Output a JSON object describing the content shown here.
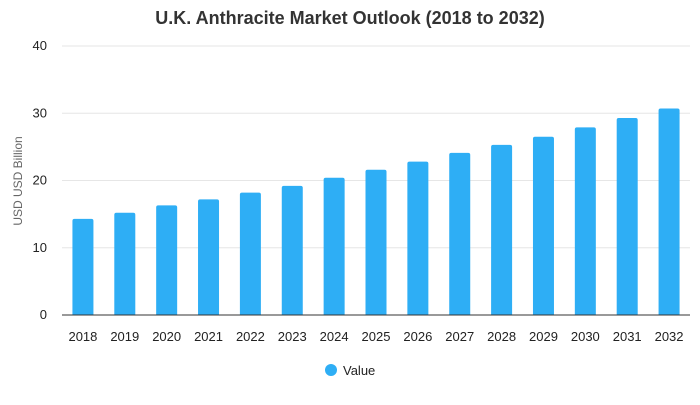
{
  "chart_data": {
    "type": "bar",
    "title": "U.K. Anthracite Market Outlook (2018 to 2032)",
    "xlabel": "",
    "ylabel": "USD USD Billion",
    "ylim": [
      0,
      40
    ],
    "yticks": [
      0,
      10,
      20,
      30,
      40
    ],
    "grid": true,
    "legend_position": "bottom",
    "categories": [
      "2018",
      "2019",
      "2020",
      "2021",
      "2022",
      "2023",
      "2024",
      "2025",
      "2026",
      "2027",
      "2028",
      "2029",
      "2030",
      "2031",
      "2032"
    ],
    "series": [
      {
        "name": "Value",
        "color": "#2eaef5",
        "values": [
          14.3,
          15.2,
          16.3,
          17.2,
          18.2,
          19.2,
          20.4,
          21.6,
          22.8,
          24.1,
          25.3,
          26.5,
          27.9,
          29.3,
          30.7
        ]
      }
    ]
  }
}
